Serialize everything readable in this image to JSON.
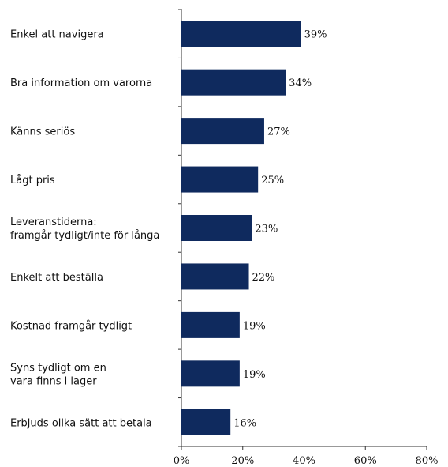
{
  "chart_data": {
    "type": "bar",
    "orientation": "horizontal",
    "categories": [
      [
        "Enkel att navigera"
      ],
      [
        "Bra information om varorna"
      ],
      [
        "Känns seriös"
      ],
      [
        "Lågt pris"
      ],
      [
        "Leveranstiderna:",
        "framgår tydligt/inte för långa"
      ],
      [
        "Enkelt att beställa"
      ],
      [
        "Kostnad framgår tydligt"
      ],
      [
        "Syns tydligt om en",
        "vara finns i lager"
      ],
      [
        "Erbjuds olika sätt att betala"
      ]
    ],
    "values": [
      39,
      34,
      27,
      25,
      23,
      22,
      19,
      19,
      16
    ],
    "value_labels": [
      "39%",
      "34%",
      "27%",
      "25%",
      "23%",
      "22%",
      "19%",
      "19%",
      "16%"
    ],
    "xlim": [
      0,
      80
    ],
    "x_ticks": [
      0,
      20,
      40,
      60,
      80
    ],
    "x_tick_labels": [
      "0%",
      "20%",
      "40%",
      "60%",
      "80%"
    ],
    "title": "",
    "xlabel": "",
    "ylabel": "",
    "grid": false,
    "colors": {
      "bar": "#0f2a5e",
      "axis": "#333333"
    }
  }
}
